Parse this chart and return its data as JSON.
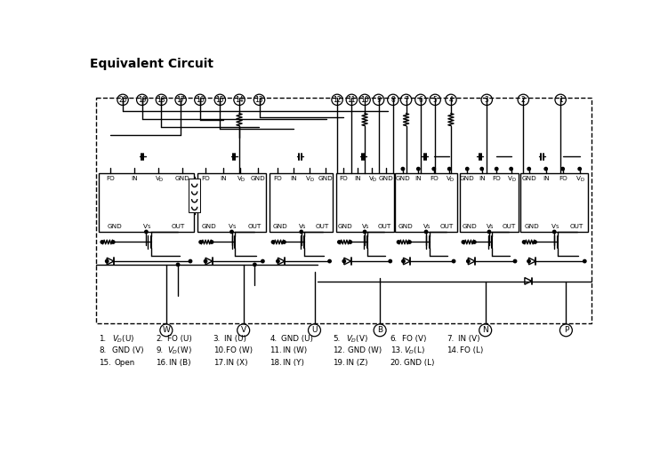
{
  "title": "Equivalent Circuit",
  "bg_color": "#ffffff",
  "lc": "#000000",
  "fig_w": 7.51,
  "fig_h": 5.19,
  "dpi": 100,
  "left_pins": [
    "20",
    "19",
    "18",
    "17",
    "16",
    "15",
    "14",
    "13"
  ],
  "right_pins": [
    "12",
    "11",
    "10",
    "9",
    "8",
    "7",
    "6",
    "5",
    "4",
    "3",
    "2",
    "1"
  ],
  "bottom_letters": [
    "W",
    "V",
    "U",
    "B",
    "N",
    "P"
  ],
  "ic_left_tops": [
    "FO",
    "IN",
    "VD",
    "GND"
  ],
  "ic_right_tops": [
    "GND",
    "IN",
    "FO",
    "VD"
  ],
  "ic_bots": [
    "GND",
    "VS",
    "OUT"
  ],
  "leg_r1": [
    [
      "1.",
      "VD(U)"
    ],
    [
      "2.",
      "FO (U)"
    ],
    [
      "3.",
      "IN (U)"
    ],
    [
      "4.",
      "GND (U)"
    ],
    [
      "5.",
      "VD(V)"
    ],
    [
      "6.",
      "FO (V)"
    ],
    [
      "7.",
      "IN (V)"
    ]
  ],
  "leg_r2": [
    [
      "8.",
      "GND (V)"
    ],
    [
      "9.",
      "VD(W)"
    ],
    [
      "10.",
      "FO (W)"
    ],
    [
      "11.",
      "IN (W)"
    ],
    [
      "12.",
      "GND (W)"
    ],
    [
      "13.",
      "VD(L)"
    ],
    [
      "14.",
      "FO (L)"
    ]
  ],
  "leg_r3": [
    [
      "15.",
      "Open"
    ],
    [
      "16.",
      "IN (B)"
    ],
    [
      "17.",
      "IN (X)"
    ],
    [
      "18.",
      "IN (Y)"
    ],
    [
      "19.",
      "IN (Z)"
    ],
    [
      "20.",
      "GND (L)"
    ]
  ]
}
